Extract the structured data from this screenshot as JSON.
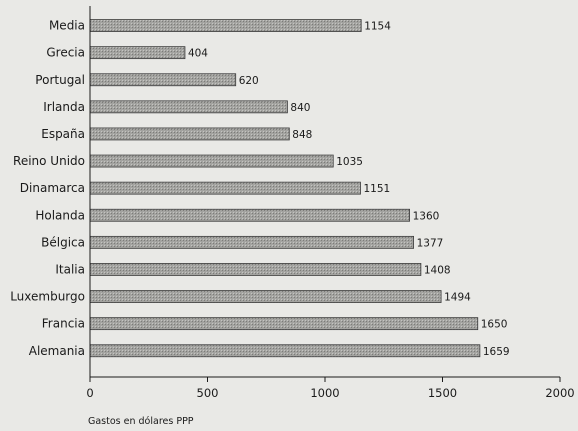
{
  "chart_data": {
    "type": "bar",
    "orientation": "horizontal",
    "categories": [
      "Media",
      "Grecia",
      "Portugal",
      "Irlanda",
      "España",
      "Reino Unido",
      "Dinamarca",
      "Holanda",
      "Bélgica",
      "Italia",
      "Luxemburgo",
      "Francia",
      "Alemania"
    ],
    "values": [
      1154,
      404,
      620,
      840,
      848,
      1035,
      1151,
      1360,
      1377,
      1408,
      1494,
      1650,
      1659
    ],
    "xlabel": "Gastos en dólares PPP",
    "ylabel": "",
    "xlim": [
      0,
      2000
    ],
    "xticks": [
      0,
      500,
      1000,
      1500,
      2000
    ],
    "grid": false,
    "bar_color": "#9a9a9a",
    "bar_stroke": "#3a3a3a"
  }
}
